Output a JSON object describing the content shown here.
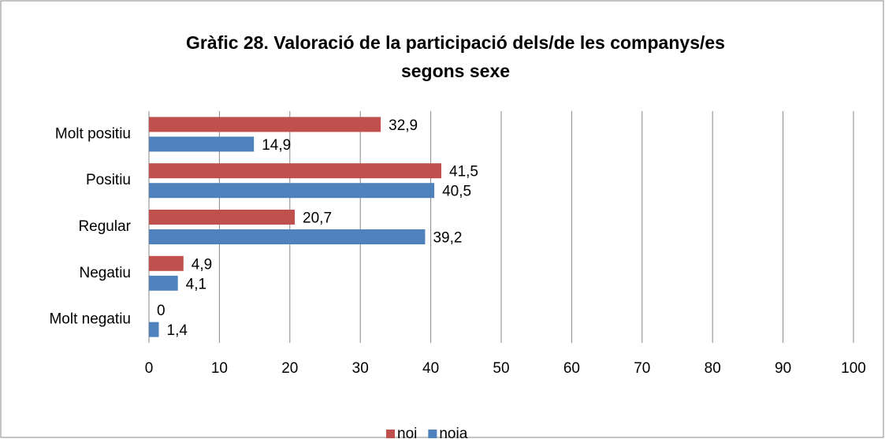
{
  "chart_data": {
    "type": "bar",
    "orientation": "horizontal",
    "title": [
      "Gràfic 28. Valoració de la participació dels/de les companys/es",
      "segons sexe"
    ],
    "categories": [
      "Molt positiu",
      "Positiu",
      "Regular",
      "Negatiu",
      "Molt negatiu"
    ],
    "series": [
      {
        "name": "noi",
        "color": "#c0504d",
        "values": [
          32.9,
          41.5,
          20.7,
          4.9,
          0
        ],
        "value_labels": [
          "32,9",
          "41,5",
          "20,7",
          "4,9",
          "0"
        ]
      },
      {
        "name": "noia",
        "color": "#4f81bd",
        "values": [
          14.9,
          40.5,
          39.2,
          4.1,
          1.4
        ],
        "value_labels": [
          "14,9",
          "40,5",
          "39,2",
          "4,1",
          "1,4"
        ]
      }
    ],
    "xlim": [
      0,
      100
    ],
    "xticks": [
      0,
      10,
      20,
      30,
      40,
      50,
      60,
      70,
      80,
      90,
      100
    ],
    "grid": true,
    "legend": "bottom"
  }
}
